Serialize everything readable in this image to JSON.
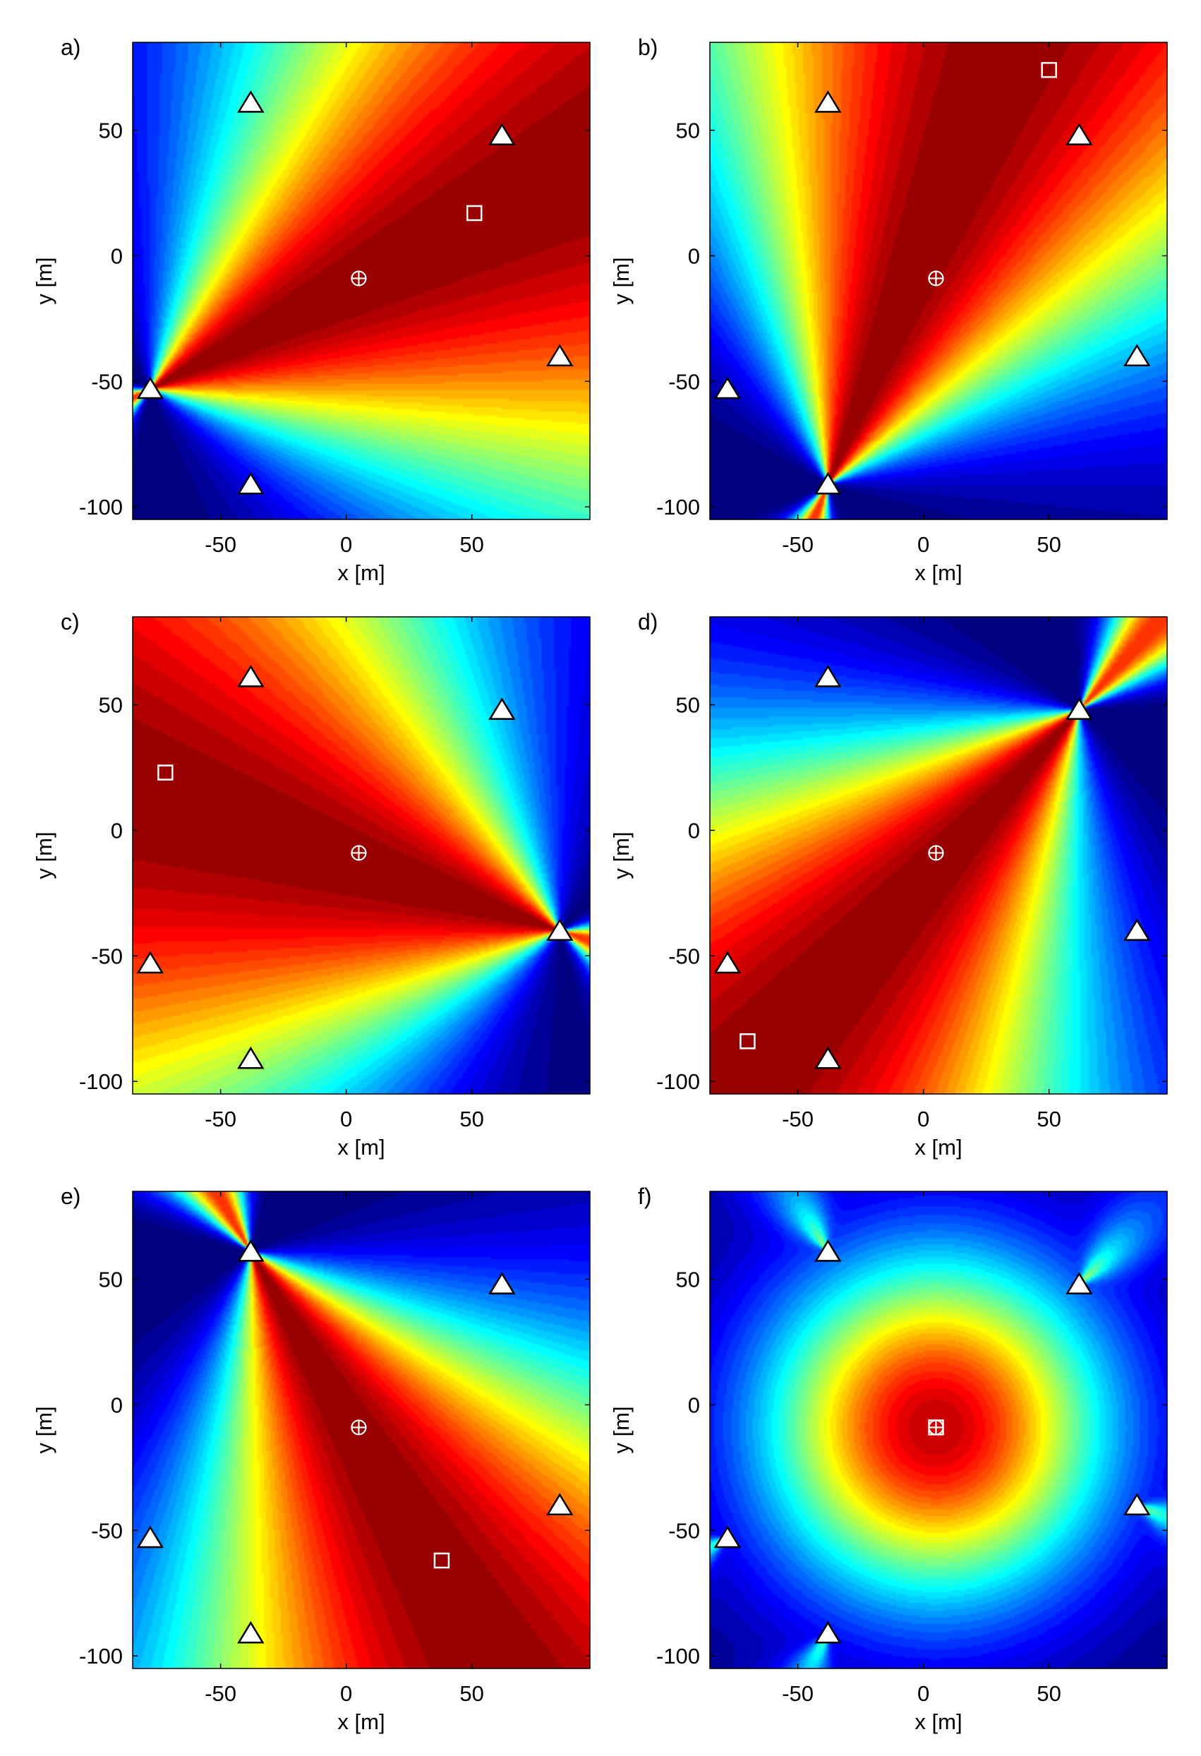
{
  "figure": {
    "marker_legend": {
      "sensor": "triangle",
      "estimate": "square",
      "true_source": "circle-cross"
    }
  },
  "chart_data": [
    {
      "type": "heatmap",
      "label": "a)",
      "xlabel": "x [m]",
      "ylabel": "y [m]",
      "xlim": [
        -85,
        97
      ],
      "ylim": [
        -105,
        85
      ],
      "xticks": [
        -50,
        0,
        50
      ],
      "yticks": [
        -100,
        -50,
        0,
        50
      ],
      "colormap": "jet",
      "field": {
        "kind": "beam",
        "apex": [
          -78,
          -53
        ],
        "direction_deg": 27,
        "width_deg": 34
      },
      "sensors": [
        [
          -38,
          61
        ],
        [
          62,
          48
        ],
        [
          -78,
          -53
        ],
        [
          85,
          -40
        ],
        [
          -38,
          -91
        ]
      ],
      "estimate": [
        51,
        17
      ],
      "true_source": [
        5,
        -9
      ]
    },
    {
      "type": "heatmap",
      "label": "b)",
      "xlabel": "x [m]",
      "ylabel": "y [m]",
      "xlim": [
        -85,
        97
      ],
      "ylim": [
        -105,
        85
      ],
      "xticks": [
        -50,
        0,
        50
      ],
      "yticks": [
        -100,
        -50,
        0,
        50
      ],
      "colormap": "jet",
      "field": {
        "kind": "beam",
        "apex": [
          -38,
          -91
        ],
        "direction_deg": 68,
        "width_deg": 30
      },
      "sensors": [
        [
          -38,
          61
        ],
        [
          62,
          48
        ],
        [
          -78,
          -53
        ],
        [
          85,
          -40
        ],
        [
          -38,
          -91
        ]
      ],
      "estimate": [
        50,
        74
      ],
      "true_source": [
        5,
        -9
      ]
    },
    {
      "type": "heatmap",
      "label": "c)",
      "xlabel": "x [m]",
      "ylabel": "y [m]",
      "xlim": [
        -85,
        97
      ],
      "ylim": [
        -105,
        85
      ],
      "xticks": [
        -50,
        0,
        50
      ],
      "yticks": [
        -100,
        -50,
        0,
        50
      ],
      "colormap": "jet",
      "field": {
        "kind": "beam",
        "apex": [
          85,
          -40
        ],
        "direction_deg": 162,
        "width_deg": 38
      },
      "sensors": [
        [
          -38,
          61
        ],
        [
          62,
          48
        ],
        [
          -78,
          -53
        ],
        [
          85,
          -40
        ],
        [
          -38,
          -91
        ]
      ],
      "estimate": [
        -72,
        23
      ],
      "true_source": [
        5,
        -9
      ]
    },
    {
      "type": "heatmap",
      "label": "d)",
      "xlabel": "x [m]",
      "ylabel": "y [m]",
      "xlim": [
        -85,
        97
      ],
      "ylim": [
        -105,
        85
      ],
      "xticks": [
        -50,
        0,
        50
      ],
      "yticks": [
        -100,
        -50,
        0,
        50
      ],
      "colormap": "jet",
      "field": {
        "kind": "beam",
        "apex": [
          62,
          48
        ],
        "direction_deg": 228,
        "width_deg": 30
      },
      "sensors": [
        [
          -38,
          61
        ],
        [
          62,
          48
        ],
        [
          -78,
          -53
        ],
        [
          85,
          -40
        ],
        [
          -38,
          -91
        ]
      ],
      "estimate": [
        -70,
        -84
      ],
      "true_source": [
        5,
        -9
      ]
    },
    {
      "type": "heatmap",
      "label": "e)",
      "xlabel": "x [m]",
      "ylabel": "y [m]",
      "xlim": [
        -85,
        97
      ],
      "ylim": [
        -105,
        85
      ],
      "xticks": [
        -50,
        0,
        50
      ],
      "yticks": [
        -100,
        -50,
        0,
        50
      ],
      "colormap": "jet",
      "field": {
        "kind": "beam",
        "apex": [
          -38,
          61
        ],
        "direction_deg": 300,
        "width_deg": 30
      },
      "sensors": [
        [
          -38,
          61
        ],
        [
          62,
          48
        ],
        [
          -78,
          -53
        ],
        [
          85,
          -40
        ],
        [
          -38,
          -91
        ]
      ],
      "estimate": [
        38,
        -62
      ],
      "true_source": [
        5,
        -9
      ]
    },
    {
      "type": "heatmap",
      "label": "f)",
      "xlabel": "x [m]",
      "ylabel": "y [m]",
      "xlim": [
        -85,
        97
      ],
      "ylim": [
        -105,
        85
      ],
      "xticks": [
        -50,
        0,
        50
      ],
      "yticks": [
        -100,
        -50,
        0,
        50
      ],
      "colormap": "jet",
      "field": {
        "kind": "combined",
        "peak": [
          5,
          -9
        ]
      },
      "sensors": [
        [
          -38,
          61
        ],
        [
          62,
          48
        ],
        [
          -78,
          -53
        ],
        [
          85,
          -40
        ],
        [
          -38,
          -91
        ]
      ],
      "estimate": [
        5,
        -9
      ],
      "true_source": [
        5,
        -9
      ]
    }
  ]
}
